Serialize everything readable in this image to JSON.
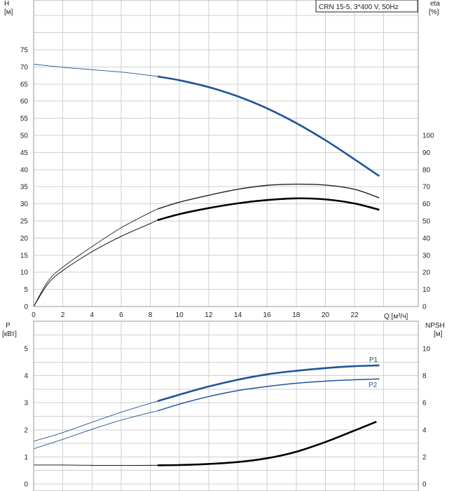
{
  "chart_data": [
    {
      "type": "line",
      "title": "CRN 15-5, 3*400 V, 50Hz",
      "xlabel": "Q [м³/ч]",
      "ylabel_left": [
        "H",
        "[м]"
      ],
      "ylabel_right": [
        "eta",
        "[%]"
      ],
      "xlim": [
        0,
        24
      ],
      "ylim_left": [
        0,
        75
      ],
      "ylim_right": [
        0,
        100
      ],
      "x_ticks": [
        0,
        2,
        4,
        6,
        8,
        10,
        12,
        14,
        16,
        18,
        20,
        22
      ],
      "y_ticks_left": [
        0,
        5,
        10,
        15,
        20,
        25,
        30,
        35,
        40,
        45,
        50,
        55,
        60,
        65,
        70,
        75
      ],
      "y_ticks_right": [
        0,
        10,
        20,
        30,
        40,
        50,
        60,
        70,
        80,
        90,
        100
      ],
      "grid": true,
      "series": [
        {
          "color": "#1f5597",
          "axis": "left",
          "operating_range": [
            8.5,
            23.7
          ],
          "x": [
            0,
            2,
            4,
            6,
            8,
            8.5,
            10,
            12,
            14,
            16,
            18,
            20,
            22,
            23.7
          ],
          "y": [
            70.8,
            69.9,
            69.2,
            68.5,
            67.5,
            67.2,
            66.1,
            64.1,
            61.4,
            57.9,
            53.6,
            48.6,
            43,
            38.1
          ]
        },
        {
          "color": "#222222",
          "axis": "right",
          "operating_range": [
            8.5,
            23.7
          ],
          "x": [
            0,
            1,
            2,
            4,
            6,
            8,
            8.5,
            10,
            12,
            14,
            16,
            18,
            20,
            22,
            23.7
          ],
          "y": [
            0,
            15,
            23,
            35,
            46,
            55,
            57,
            61,
            65,
            68.5,
            70.8,
            71.5,
            71,
            68.5,
            63.5
          ]
        },
        {
          "color": "#000000",
          "axis": "right",
          "operating_range": [
            8.5,
            23.7
          ],
          "x": [
            0,
            1,
            2,
            4,
            6,
            8,
            8.5,
            10,
            12,
            14,
            16,
            18,
            20,
            22,
            23.7
          ],
          "y": [
            0,
            13.5,
            21,
            32,
            41,
            48.5,
            50.5,
            54,
            57.5,
            60.3,
            62.2,
            63.2,
            62.6,
            60.2,
            56.5
          ]
        }
      ]
    },
    {
      "type": "line",
      "ylabel_left": [
        "P",
        "[кВт]"
      ],
      "ylabel_right": [
        "NPSH",
        "[м]"
      ],
      "xlim": [
        0,
        24
      ],
      "ylim_left": [
        0,
        5
      ],
      "ylim_right": [
        0,
        10
      ],
      "y_ticks_left": [
        0,
        1,
        2,
        3,
        4,
        5
      ],
      "y_ticks_right": [
        0,
        2,
        4,
        6,
        8,
        10
      ],
      "grid": true,
      "series": [
        {
          "name": "P1",
          "color": "#1f5597",
          "axis": "left",
          "operating_range": [
            8.5,
            23.7
          ],
          "x": [
            0,
            2,
            4,
            6,
            8,
            8.5,
            10,
            12,
            14,
            16,
            18,
            20,
            22,
            23.7
          ],
          "y": [
            1.58,
            1.9,
            2.28,
            2.65,
            2.98,
            3.06,
            3.3,
            3.6,
            3.85,
            4.05,
            4.18,
            4.28,
            4.35,
            4.38
          ]
        },
        {
          "name": "P2",
          "color": "#1f5597",
          "axis": "left",
          "operating_range": [
            8.5,
            23.7
          ],
          "x": [
            0,
            2,
            4,
            6,
            8,
            8.5,
            10,
            12,
            14,
            16,
            18,
            20,
            22,
            23.7
          ],
          "y": [
            1.3,
            1.65,
            2.02,
            2.36,
            2.64,
            2.7,
            2.95,
            3.23,
            3.45,
            3.6,
            3.72,
            3.8,
            3.85,
            3.88
          ]
        },
        {
          "color": "#000000",
          "axis": "right",
          "operating_range": [
            8.5,
            23.7
          ],
          "x": [
            0,
            2,
            4,
            6,
            8,
            8.5,
            10,
            12,
            14,
            16,
            18,
            20,
            22,
            23.5
          ],
          "y": [
            1.4,
            1.4,
            1.38,
            1.37,
            1.38,
            1.38,
            1.4,
            1.48,
            1.62,
            1.9,
            2.38,
            3.1,
            3.95,
            4.6
          ]
        }
      ]
    }
  ]
}
